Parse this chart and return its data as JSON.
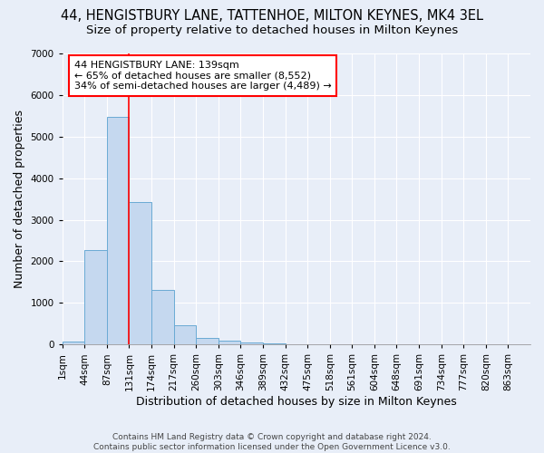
{
  "title": "44, HENGISTBURY LANE, TATTENHOE, MILTON KEYNES, MK4 3EL",
  "subtitle": "Size of property relative to detached houses in Milton Keynes",
  "xlabel": "Distribution of detached houses by size in Milton Keynes",
  "ylabel": "Number of detached properties",
  "footer_line1": "Contains HM Land Registry data © Crown copyright and database right 2024.",
  "footer_line2": "Contains public sector information licensed under the Open Government Licence v3.0.",
  "bin_labels": [
    "1sqm",
    "44sqm",
    "87sqm",
    "131sqm",
    "174sqm",
    "217sqm",
    "260sqm",
    "303sqm",
    "346sqm",
    "389sqm",
    "432sqm",
    "475sqm",
    "518sqm",
    "561sqm",
    "604sqm",
    "648sqm",
    "691sqm",
    "734sqm",
    "777sqm",
    "820sqm",
    "863sqm"
  ],
  "bar_values": [
    80,
    2270,
    5480,
    3430,
    1310,
    470,
    155,
    90,
    55,
    30,
    10,
    0,
    0,
    0,
    0,
    0,
    0,
    0,
    0,
    0,
    0
  ],
  "bar_color": "#c5d8ef",
  "bar_edge_color": "#6aaad4",
  "ylim": [
    0,
    7000
  ],
  "yticks": [
    0,
    1000,
    2000,
    3000,
    4000,
    5000,
    6000,
    7000
  ],
  "property_label": "44 HENGISTBURY LANE: 139sqm",
  "annotation_line1": "← 65% of detached houses are smaller (8,552)",
  "annotation_line2": "34% of semi-detached houses are larger (4,489) →",
  "red_line_bin_index": 3,
  "background_color": "#e8eef8",
  "grid_color": "#ffffff",
  "title_fontsize": 10.5,
  "subtitle_fontsize": 9.5,
  "axis_label_fontsize": 9,
  "tick_fontsize": 7.5,
  "annotation_fontsize": 8
}
